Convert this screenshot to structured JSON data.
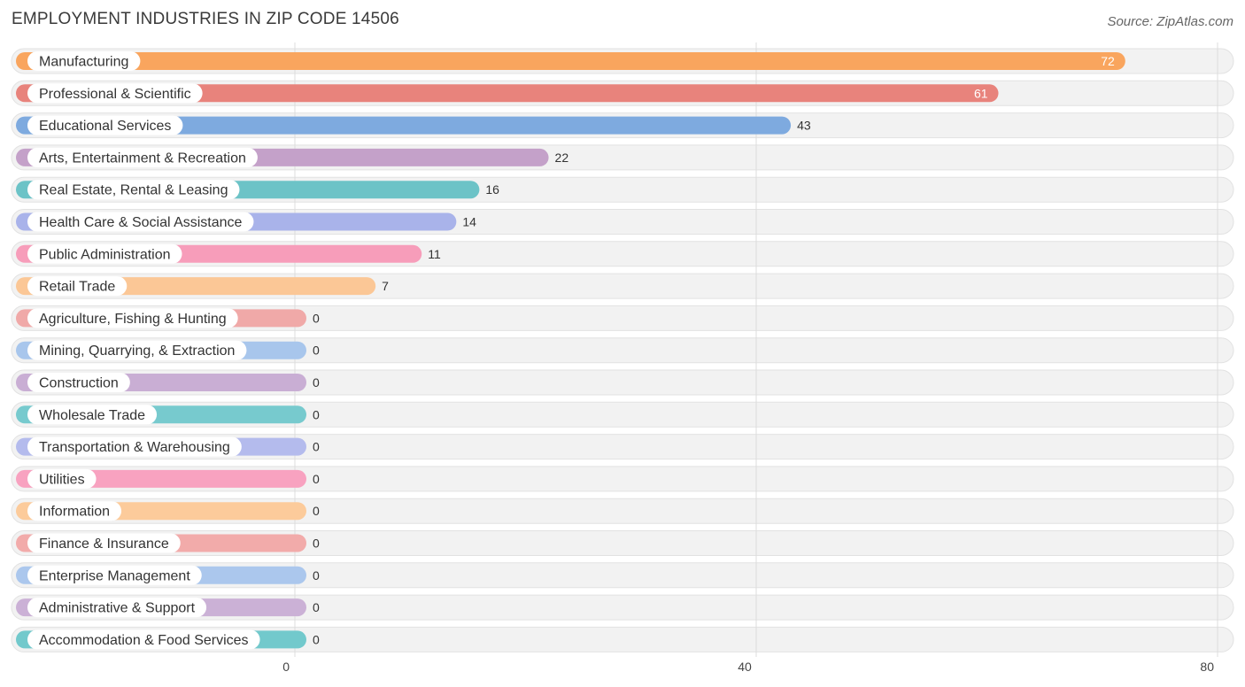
{
  "title": "EMPLOYMENT INDUSTRIES IN ZIP CODE 14506",
  "source": "Source: ZipAtlas.com",
  "chart_data": {
    "type": "bar",
    "orientation": "horizontal",
    "xlim": [
      0,
      80
    ],
    "ticks": [
      0,
      40,
      80
    ],
    "grid": true,
    "categories": [
      "Manufacturing",
      "Professional & Scientific",
      "Educational Services",
      "Arts, Entertainment & Recreation",
      "Real Estate, Rental & Leasing",
      "Health Care & Social Assistance",
      "Public Administration",
      "Retail Trade",
      "Agriculture, Fishing & Hunting",
      "Mining, Quarrying, & Extraction",
      "Construction",
      "Wholesale Trade",
      "Transportation & Warehousing",
      "Utilities",
      "Information",
      "Finance & Insurance",
      "Enterprise Management",
      "Administrative & Support",
      "Accommodation & Food Services"
    ],
    "values": [
      72,
      61,
      43,
      22,
      16,
      14,
      11,
      7,
      0,
      0,
      0,
      0,
      0,
      0,
      0,
      0,
      0,
      0,
      0
    ],
    "colors": [
      "#f9a55e",
      "#e8837c",
      "#7eaadf",
      "#c4a1c9",
      "#6cc3c7",
      "#a9b3ea",
      "#f79dba",
      "#fbc796",
      "#f0a9a8",
      "#a8c6ec",
      "#c9aed4",
      "#77cace",
      "#b4bbed",
      "#f8a2c0",
      "#fccb9b",
      "#f2abaa",
      "#abc7ed",
      "#cbb1d6",
      "#72c9cc"
    ]
  }
}
